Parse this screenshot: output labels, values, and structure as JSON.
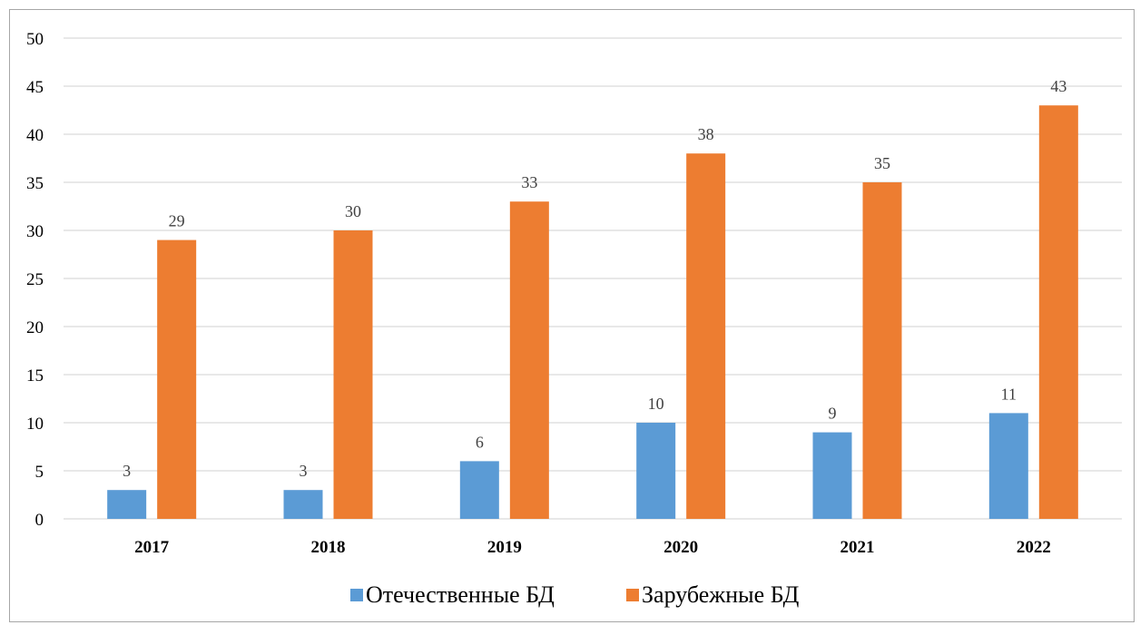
{
  "chart_data": {
    "type": "bar",
    "title": "",
    "xlabel": "",
    "ylabel": "",
    "categories": [
      "2017",
      "2018",
      "2019",
      "2020",
      "2021",
      "2022"
    ],
    "series": [
      {
        "name": "Отечественные БД",
        "values": [
          3,
          3,
          6,
          10,
          9,
          11
        ],
        "color": "#5b9bd5"
      },
      {
        "name": "Зарубежные БД",
        "values": [
          29,
          30,
          33,
          38,
          35,
          43
        ],
        "color": "#ed7d31"
      }
    ],
    "ylim": [
      0,
      50
    ],
    "yticks": [
      0,
      5,
      10,
      15,
      20,
      25,
      30,
      35,
      40,
      45,
      50
    ],
    "grid": true,
    "legend_position": "bottom",
    "data_labels": true
  }
}
